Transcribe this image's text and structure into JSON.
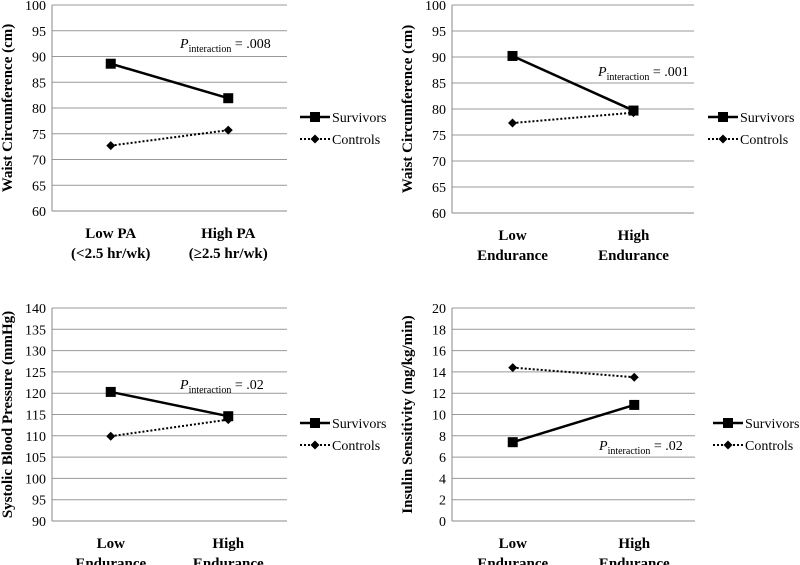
{
  "chart_data": [
    {
      "type": "line",
      "ylabel": "Waist Circumference (cm)",
      "categories": [
        "Low PA|(<2.5 hr/wk)",
        "High PA|(≥2.5 hr/wk)"
      ],
      "ylim": [
        60,
        100
      ],
      "ystep": 5,
      "series": [
        {
          "name": "Survivors",
          "values": [
            88.6,
            81.9
          ],
          "style": "solid",
          "marker": "square"
        },
        {
          "name": "Controls",
          "values": [
            72.7,
            75.7
          ],
          "style": "dotted",
          "marker": "diamond"
        }
      ],
      "annotation": {
        "p": "P",
        "sub": "interaction",
        "rest": " = .008"
      },
      "grid": true,
      "legend": "right"
    },
    {
      "type": "line",
      "ylabel": "Waist Circumference (cm)",
      "categories": [
        "Low|Endurance",
        "High|Endurance"
      ],
      "ylim": [
        60,
        100
      ],
      "ystep": 5,
      "series": [
        {
          "name": "Survivors",
          "values": [
            90.2,
            79.7
          ],
          "style": "solid",
          "marker": "square"
        },
        {
          "name": "Controls",
          "values": [
            77.3,
            79.3
          ],
          "style": "dotted",
          "marker": "diamond"
        }
      ],
      "annotation": {
        "p": "P",
        "sub": "interaction",
        "rest": " = .001"
      },
      "grid": true,
      "legend": "right"
    },
    {
      "type": "line",
      "ylabel": "Systolic Blood Pressure (mmHg)",
      "categories": [
        "Low|Endurance",
        "High|Endurance"
      ],
      "ylim": [
        90,
        140
      ],
      "ystep": 5,
      "series": [
        {
          "name": "Survivors",
          "values": [
            120.3,
            114.6
          ],
          "style": "solid",
          "marker": "square"
        },
        {
          "name": "Controls",
          "values": [
            109.9,
            113.8
          ],
          "style": "dotted",
          "marker": "diamond"
        }
      ],
      "annotation": {
        "p": "P",
        "sub": "interaction",
        "rest": " = .02"
      },
      "grid": true,
      "legend": "right"
    },
    {
      "type": "line",
      "ylabel": "Insulin Sensitivity (mg/kg/min)",
      "categories": [
        "Low|Endurance",
        "High|Endurance"
      ],
      "ylim": [
        0,
        20
      ],
      "ystep": 2,
      "series": [
        {
          "name": "Survivors",
          "values": [
            7.4,
            10.9
          ],
          "style": "solid",
          "marker": "square"
        },
        {
          "name": "Controls",
          "values": [
            14.4,
            13.5
          ],
          "style": "dotted",
          "marker": "diamond"
        }
      ],
      "annotation": {
        "p": "P",
        "sub": "interaction",
        "rest": " = .02"
      },
      "grid": true,
      "legend": "right"
    }
  ]
}
